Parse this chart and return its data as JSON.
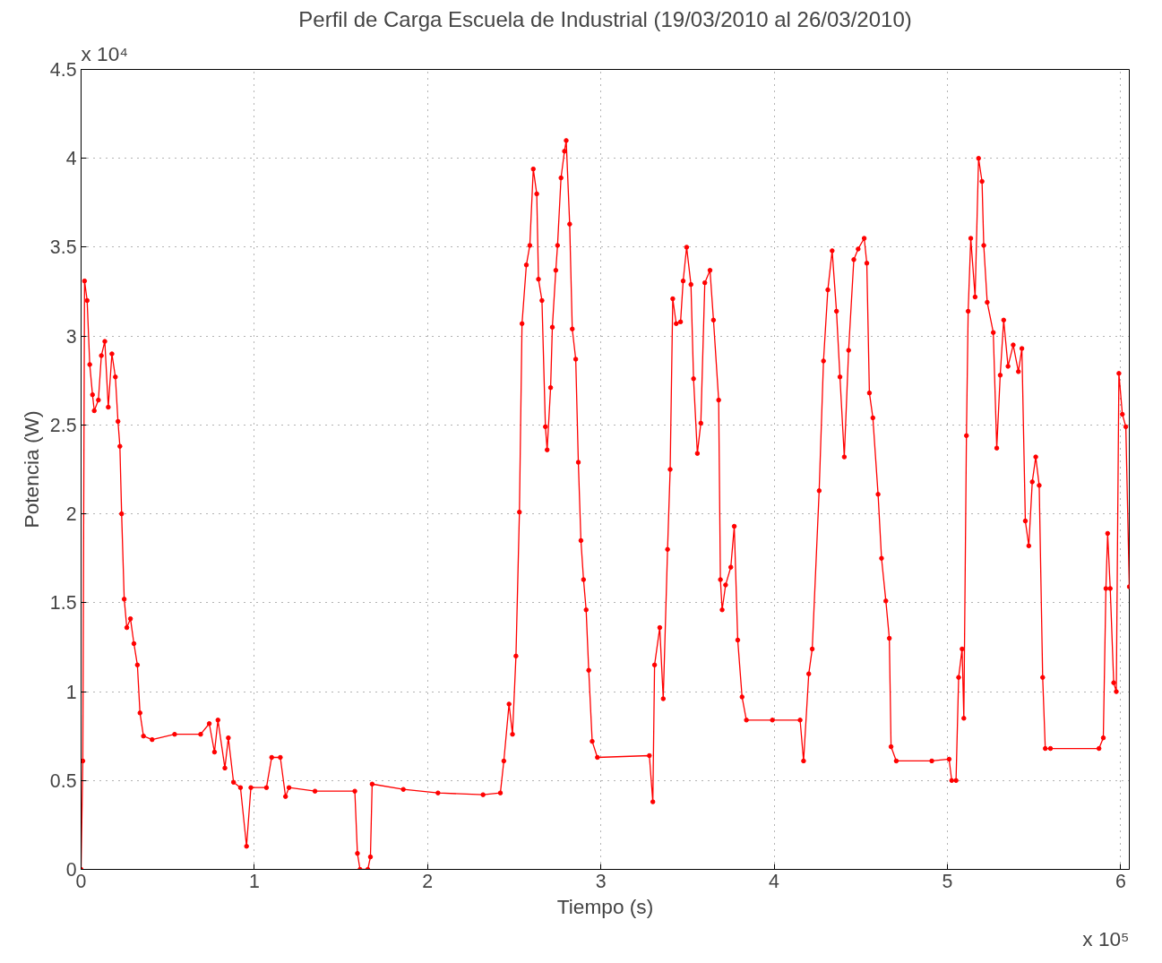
{
  "chart_data": {
    "type": "line",
    "title": "Perfil de Carga Escuela de Industrial (19/03/2010 al 26/03/2010)",
    "xlabel": "Tiempo (s)",
    "ylabel": "Potencia (W)",
    "annotations": [
      "x 10⁴",
      "x 10⁵"
    ],
    "x": [
      0,
      0.01,
      0.02,
      0.035,
      0.05,
      0.066,
      0.076,
      0.1,
      0.117,
      0.137,
      0.157,
      0.178,
      0.198,
      0.213,
      0.224,
      0.234,
      0.249,
      0.264,
      0.285,
      0.305,
      0.325,
      0.34,
      0.36,
      0.41,
      0.54,
      0.69,
      0.74,
      0.77,
      0.79,
      0.83,
      0.85,
      0.88,
      0.92,
      0.955,
      0.98,
      1.07,
      1.1,
      1.15,
      1.18,
      1.2,
      1.35,
      1.58,
      1.595,
      1.61,
      1.655,
      1.67,
      1.68,
      1.86,
      2.06,
      2.32,
      2.42,
      2.44,
      2.47,
      2.49,
      2.51,
      2.53,
      2.545,
      2.57,
      2.59,
      2.61,
      2.63,
      2.64,
      2.66,
      2.68,
      2.69,
      2.71,
      2.72,
      2.74,
      2.75,
      2.77,
      2.79,
      2.8,
      2.82,
      2.835,
      2.855,
      2.87,
      2.885,
      2.9,
      2.915,
      2.93,
      2.95,
      2.98,
      3.28,
      3.3,
      3.31,
      3.34,
      3.36,
      3.385,
      3.4,
      3.415,
      3.435,
      3.46,
      3.475,
      3.495,
      3.52,
      3.535,
      3.557,
      3.577,
      3.6,
      3.63,
      3.65,
      3.68,
      3.69,
      3.7,
      3.72,
      3.75,
      3.77,
      3.79,
      3.815,
      3.84,
      3.99,
      4.15,
      4.17,
      4.2,
      4.22,
      4.26,
      4.285,
      4.31,
      4.335,
      4.36,
      4.38,
      4.405,
      4.43,
      4.46,
      4.485,
      4.52,
      4.535,
      4.55,
      4.57,
      4.6,
      4.62,
      4.645,
      4.665,
      4.675,
      4.705,
      4.91,
      5.01,
      5.025,
      5.05,
      5.065,
      5.085,
      5.095,
      5.11,
      5.12,
      5.135,
      5.16,
      5.18,
      5.2,
      5.21,
      5.23,
      5.265,
      5.285,
      5.305,
      5.325,
      5.35,
      5.38,
      5.41,
      5.43,
      5.45,
      5.47,
      5.49,
      5.51,
      5.53,
      5.55,
      5.565,
      5.595,
      5.875,
      5.9,
      5.915,
      5.925,
      5.94,
      5.96,
      5.975,
      5.99,
      6.01,
      6.03,
      6.05
    ],
    "series": [
      {
        "color": "#ff0000",
        "values": [
          0,
          0.61,
          3.31,
          3.2,
          2.84,
          2.67,
          2.58,
          2.64,
          2.89,
          2.97,
          2.6,
          2.9,
          2.77,
          2.52,
          2.38,
          2.0,
          1.52,
          1.36,
          1.41,
          1.27,
          1.15,
          0.88,
          0.75,
          0.73,
          0.76,
          0.76,
          0.82,
          0.66,
          0.84,
          0.57,
          0.74,
          0.49,
          0.46,
          0.13,
          0.46,
          0.46,
          0.63,
          0.63,
          0.41,
          0.46,
          0.44,
          0.44,
          0.09,
          0,
          0,
          0.07,
          0.48,
          0.45,
          0.43,
          0.42,
          0.43,
          0.61,
          0.93,
          0.76,
          1.2,
          2.01,
          3.07,
          3.4,
          3.51,
          3.94,
          3.8,
          3.32,
          3.2,
          2.49,
          2.36,
          2.71,
          3.05,
          3.37,
          3.51,
          3.89,
          4.04,
          4.1,
          3.63,
          3.04,
          2.87,
          2.29,
          1.85,
          1.63,
          1.46,
          1.12,
          0.72,
          0.63,
          0.64,
          0.38,
          1.15,
          1.36,
          0.96,
          1.8,
          2.25,
          3.21,
          3.07,
          3.08,
          3.31,
          3.5,
          3.29,
          2.76,
          2.34,
          2.51,
          3.3,
          3.37,
          3.09,
          2.64,
          1.63,
          1.46,
          1.6,
          1.7,
          1.93,
          1.29,
          0.97,
          0.84,
          0.84,
          0.84,
          0.61,
          1.1,
          1.24,
          2.13,
          2.86,
          3.26,
          3.48,
          3.14,
          2.77,
          2.32,
          2.92,
          3.43,
          3.49,
          3.55,
          3.41,
          2.68,
          2.54,
          2.11,
          1.75,
          1.51,
          1.3,
          0.69,
          0.61,
          0.61,
          0.62,
          0.5,
          0.5,
          1.08,
          1.24,
          0.85,
          2.44,
          3.14,
          3.55,
          3.22,
          4.0,
          3.87,
          3.51,
          3.19,
          3.02,
          2.37,
          2.78,
          3.09,
          2.83,
          2.95,
          2.8,
          2.93,
          1.96,
          1.82,
          2.18,
          2.32,
          2.16,
          1.08,
          0.68,
          0.68,
          0.68,
          0.74,
          1.58,
          1.89,
          1.58,
          1.05,
          1.0,
          2.79,
          2.56,
          2.49,
          1.59
        ]
      }
    ],
    "xlim": [
      0,
      6.05
    ],
    "ylim": [
      0,
      4.5
    ],
    "xticks": [
      0,
      1,
      2,
      3,
      4,
      5,
      6
    ],
    "yticks": [
      0,
      0.5,
      1,
      1.5,
      2,
      2.5,
      3,
      3.5,
      4,
      4.5
    ],
    "grid": true,
    "marker": "circle",
    "line_style": "solid"
  }
}
